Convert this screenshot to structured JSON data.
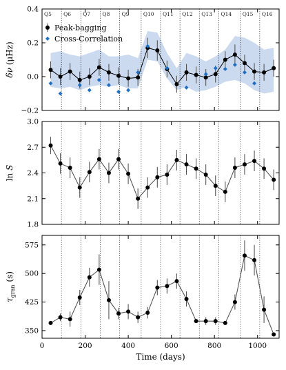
{
  "chart_data": [
    {
      "type": "line",
      "ylabel": "δν (μHz)",
      "ylim": [
        -0.2,
        0.4
      ],
      "yticks": [
        -0.2,
        0.0,
        0.2,
        0.4
      ],
      "ytick_labels": [
        "−0.2",
        "0.0",
        "0.2",
        "0.4"
      ],
      "xlim": [
        0,
        1100
      ],
      "quarter_boundaries": [
        90,
        180,
        270,
        360,
        460,
        550,
        640,
        730,
        820,
        920,
        1010
      ],
      "quarter_labels": [
        "Q5",
        "Q6",
        "Q7",
        "Q8",
        "Q9",
        "Q10",
        "Q11",
        "Q12",
        "Q13",
        "Q14",
        "Q15",
        "Q16"
      ],
      "uncertainty_band": {
        "x": [
          40,
          85,
          130,
          175,
          220,
          265,
          310,
          355,
          400,
          445,
          490,
          535,
          580,
          625,
          670,
          715,
          760,
          805,
          850,
          895,
          940,
          985,
          1030,
          1075
        ],
        "lower": [
          -0.06,
          -0.07,
          -0.06,
          -0.08,
          -0.06,
          -0.05,
          -0.06,
          -0.05,
          -0.07,
          -0.07,
          0.1,
          0.09,
          -0.01,
          -0.08,
          -0.06,
          -0.09,
          -0.08,
          -0.06,
          -0.03,
          -0.02,
          -0.04,
          -0.08,
          -0.1,
          -0.09
        ],
        "upper": [
          0.14,
          0.15,
          0.13,
          0.12,
          0.14,
          0.16,
          0.12,
          0.12,
          0.13,
          0.11,
          0.27,
          0.26,
          0.14,
          0.05,
          0.14,
          0.12,
          0.09,
          0.12,
          0.16,
          0.24,
          0.23,
          0.2,
          0.16,
          0.17
        ]
      },
      "series": [
        {
          "name": "Peak-bagging",
          "color": "#000000",
          "marker": "circle",
          "x": [
            40,
            85,
            130,
            175,
            220,
            265,
            310,
            355,
            400,
            445,
            490,
            535,
            580,
            625,
            670,
            715,
            760,
            805,
            850,
            895,
            940,
            985,
            1030,
            1075
          ],
          "y": [
            0.04,
            0.0,
            0.03,
            -0.02,
            0.0,
            0.055,
            0.025,
            0.005,
            -0.01,
            -0.005,
            0.17,
            0.155,
            0.045,
            -0.045,
            0.025,
            0.01,
            -0.005,
            0.015,
            0.1,
            0.13,
            0.08,
            0.03,
            0.025,
            0.05
          ],
          "err": [
            0.05,
            0.05,
            0.05,
            0.05,
            0.05,
            0.05,
            0.05,
            0.05,
            0.05,
            0.05,
            0.06,
            0.06,
            0.05,
            0.05,
            0.05,
            0.05,
            0.05,
            0.05,
            0.05,
            0.06,
            0.05,
            0.05,
            0.05,
            0.05
          ]
        },
        {
          "name": "Cross-Correlation",
          "color": "#1f6fc5",
          "marker": "diamond",
          "x": [
            40,
            85,
            175,
            220,
            265,
            310,
            355,
            400,
            445,
            490,
            580,
            670,
            760,
            805,
            850,
            895,
            940,
            985
          ],
          "y": [
            -0.04,
            -0.1,
            -0.05,
            -0.08,
            -0.02,
            -0.05,
            -0.09,
            -0.08,
            0.025,
            0.18,
            0.05,
            -0.065,
            0.015,
            0.05,
            0.045,
            0.07,
            0.025,
            -0.04
          ]
        }
      ]
    },
    {
      "type": "line",
      "ylabel": "ln S",
      "ylim": [
        1.8,
        3.0
      ],
      "yticks": [
        1.8,
        2.1,
        2.4,
        2.7,
        3.0
      ],
      "ytick_labels": [
        "1.8",
        "2.1",
        "2.4",
        "2.7",
        "3.0"
      ],
      "xlim": [
        0,
        1100
      ],
      "quarter_boundaries": [
        90,
        180,
        270,
        360,
        460,
        550,
        640,
        730,
        820,
        920,
        1010
      ],
      "series": [
        {
          "color": "#000000",
          "marker": "circle",
          "x": [
            40,
            85,
            130,
            175,
            220,
            265,
            310,
            355,
            400,
            445,
            490,
            535,
            580,
            625,
            670,
            715,
            760,
            805,
            850,
            895,
            940,
            985,
            1030,
            1075
          ],
          "y": [
            2.72,
            2.51,
            2.46,
            2.23,
            2.41,
            2.56,
            2.4,
            2.56,
            2.39,
            2.1,
            2.23,
            2.35,
            2.38,
            2.55,
            2.5,
            2.45,
            2.38,
            2.25,
            2.18,
            2.46,
            2.5,
            2.54,
            2.45,
            2.32
          ],
          "err": [
            0.1,
            0.12,
            0.12,
            0.12,
            0.12,
            0.12,
            0.12,
            0.12,
            0.12,
            0.12,
            0.12,
            0.12,
            0.12,
            0.12,
            0.12,
            0.12,
            0.12,
            0.12,
            0.12,
            0.12,
            0.12,
            0.12,
            0.12,
            0.12
          ]
        }
      ]
    },
    {
      "type": "line",
      "ylabel": "τgran (s)",
      "xlabel": "Time (days)",
      "ylim": [
        330,
        600
      ],
      "yticks": [
        350,
        425,
        500,
        575
      ],
      "ytick_labels": [
        "350",
        "425",
        "500",
        "575"
      ],
      "xlim": [
        0,
        1100
      ],
      "xticks": [
        0,
        200,
        400,
        600,
        800,
        1000
      ],
      "xtick_labels": [
        "0",
        "200",
        "400",
        "600",
        "800",
        "1000"
      ],
      "quarter_boundaries": [
        90,
        180,
        270,
        360,
        460,
        550,
        640,
        730,
        820,
        920,
        1010
      ],
      "series": [
        {
          "color": "#000000",
          "marker": "circle",
          "x": [
            40,
            85,
            130,
            175,
            220,
            265,
            310,
            355,
            400,
            445,
            490,
            535,
            580,
            625,
            670,
            715,
            760,
            805,
            850,
            895,
            940,
            985,
            1030,
            1075
          ],
          "y": [
            370,
            385,
            380,
            437,
            490,
            510,
            430,
            395,
            400,
            385,
            397,
            463,
            467,
            480,
            433,
            375,
            375,
            375,
            370,
            425,
            547,
            535,
            405,
            340
          ],
          "err": [
            0,
            10,
            20,
            20,
            25,
            40,
            50,
            15,
            20,
            15,
            15,
            20,
            20,
            20,
            20,
            0,
            10,
            10,
            0,
            20,
            40,
            40,
            35,
            0
          ]
        }
      ]
    }
  ]
}
